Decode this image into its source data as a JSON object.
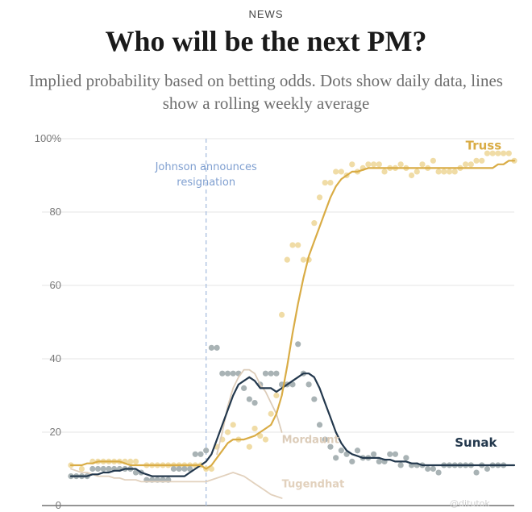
{
  "header": {
    "kicker": "NEWS",
    "title": "Who will be the next PM?",
    "subtitle": "Implied probability based on betting odds. Dots show daily data, lines show a rolling weekly average"
  },
  "watermark": "@ditutok",
  "chart_data": {
    "type": "line",
    "ylim": [
      0,
      100
    ],
    "yticks": [
      "0",
      "20",
      "40",
      "60",
      "80",
      "100%"
    ],
    "grid": true,
    "annotation": {
      "text_lines": [
        "Johnson announces",
        "resignation"
      ],
      "day": 25
    },
    "days": 83,
    "series": [
      {
        "name": "Truss",
        "color": "#d9ac45",
        "dot_color": "#f0dca6",
        "line": [
          11,
          11,
          11,
          11.5,
          11.5,
          12,
          12,
          12,
          12,
          12,
          11.5,
          11,
          11,
          11,
          11,
          11,
          11,
          11,
          11,
          11,
          11,
          11,
          11,
          11,
          11,
          10,
          11,
          13,
          15,
          17,
          18,
          18,
          18,
          18.5,
          19,
          20,
          21,
          22,
          25,
          30,
          38,
          47,
          55,
          62,
          68,
          72,
          76,
          80,
          84,
          87,
          89,
          90,
          91,
          91,
          91.5,
          92,
          92,
          92,
          92,
          92,
          92,
          92,
          92,
          92,
          92,
          92,
          92,
          92,
          92,
          92,
          92,
          92,
          92,
          92,
          92,
          92,
          92,
          92,
          92,
          93,
          93,
          94,
          94
        ],
        "dots": [
          [
            0,
            11
          ],
          [
            2,
            10
          ],
          [
            4,
            12
          ],
          [
            5,
            12
          ],
          [
            6,
            12
          ],
          [
            7,
            12
          ],
          [
            8,
            12
          ],
          [
            9,
            12
          ],
          [
            10,
            12
          ],
          [
            11,
            12
          ],
          [
            12,
            12
          ],
          [
            14,
            11
          ],
          [
            15,
            11
          ],
          [
            16,
            11
          ],
          [
            17,
            11
          ],
          [
            18,
            11
          ],
          [
            19,
            11
          ],
          [
            20,
            11
          ],
          [
            21,
            11
          ],
          [
            22,
            11
          ],
          [
            23,
            11
          ],
          [
            24,
            11
          ],
          [
            25,
            10
          ],
          [
            26,
            10
          ],
          [
            27,
            16
          ],
          [
            28,
            18
          ],
          [
            29,
            20
          ],
          [
            30,
            22
          ],
          [
            31,
            18
          ],
          [
            33,
            16
          ],
          [
            34,
            21
          ],
          [
            35,
            19
          ],
          [
            36,
            18
          ],
          [
            37,
            25
          ],
          [
            38,
            30
          ],
          [
            39,
            52
          ],
          [
            40,
            67
          ],
          [
            41,
            71
          ],
          [
            42,
            71
          ],
          [
            43,
            67
          ],
          [
            44,
            67
          ],
          [
            45,
            77
          ],
          [
            46,
            84
          ],
          [
            47,
            88
          ],
          [
            48,
            88
          ],
          [
            49,
            91
          ],
          [
            50,
            91
          ],
          [
            51,
            90
          ],
          [
            52,
            93
          ],
          [
            53,
            91
          ],
          [
            54,
            92
          ],
          [
            55,
            93
          ],
          [
            56,
            93
          ],
          [
            57,
            93
          ],
          [
            58,
            91
          ],
          [
            59,
            92
          ],
          [
            60,
            92
          ],
          [
            61,
            93
          ],
          [
            62,
            92
          ],
          [
            63,
            90
          ],
          [
            64,
            91
          ],
          [
            65,
            93
          ],
          [
            66,
            92
          ],
          [
            67,
            94
          ],
          [
            68,
            91
          ],
          [
            69,
            91
          ],
          [
            70,
            91
          ],
          [
            71,
            91
          ],
          [
            72,
            92
          ],
          [
            73,
            93
          ],
          [
            74,
            93
          ],
          [
            75,
            94
          ],
          [
            76,
            94
          ],
          [
            77,
            96
          ],
          [
            78,
            96
          ],
          [
            79,
            96
          ],
          [
            80,
            96
          ],
          [
            81,
            96
          ],
          [
            82,
            94
          ]
        ]
      },
      {
        "name": "Sunak",
        "color": "#23384d",
        "dot_color": "#a9b3b5",
        "line": [
          8,
          8,
          8,
          8,
          8.5,
          8.5,
          9,
          9,
          9.5,
          9.5,
          10,
          10,
          10,
          9,
          8.5,
          8,
          8,
          8,
          8,
          8,
          8,
          8,
          9,
          10,
          11,
          12,
          14,
          18,
          22,
          26,
          30,
          33,
          34,
          35,
          34,
          32,
          32,
          32,
          31,
          32,
          33,
          34,
          35,
          36,
          36,
          35,
          32,
          28,
          24,
          20,
          17,
          15,
          14,
          13.5,
          13,
          13,
          13,
          13,
          12.5,
          12.5,
          12,
          12,
          12,
          11.5,
          11.5,
          11,
          11,
          11,
          11,
          11,
          11,
          11,
          11,
          11,
          11,
          11,
          11,
          11,
          11,
          11,
          11,
          11,
          11
        ],
        "dots": [
          [
            0,
            8
          ],
          [
            1,
            8
          ],
          [
            2,
            8
          ],
          [
            3,
            8
          ],
          [
            4,
            10
          ],
          [
            5,
            10
          ],
          [
            6,
            10
          ],
          [
            7,
            10
          ],
          [
            8,
            10
          ],
          [
            9,
            10
          ],
          [
            10,
            10
          ],
          [
            11,
            10
          ],
          [
            12,
            9
          ],
          [
            13,
            9
          ],
          [
            14,
            7
          ],
          [
            15,
            7
          ],
          [
            16,
            7
          ],
          [
            17,
            7
          ],
          [
            18,
            7
          ],
          [
            19,
            10
          ],
          [
            20,
            10
          ],
          [
            21,
            10
          ],
          [
            22,
            10
          ],
          [
            23,
            14
          ],
          [
            24,
            14
          ],
          [
            25,
            15
          ],
          [
            26,
            43
          ],
          [
            27,
            43
          ],
          [
            28,
            36
          ],
          [
            29,
            36
          ],
          [
            30,
            36
          ],
          [
            31,
            36
          ],
          [
            32,
            32
          ],
          [
            33,
            29
          ],
          [
            34,
            28
          ],
          [
            35,
            33
          ],
          [
            36,
            36
          ],
          [
            37,
            36
          ],
          [
            38,
            36
          ],
          [
            39,
            33
          ],
          [
            40,
            33
          ],
          [
            41,
            33
          ],
          [
            42,
            44
          ],
          [
            43,
            36
          ],
          [
            44,
            33
          ],
          [
            45,
            29
          ],
          [
            46,
            22
          ],
          [
            47,
            18
          ],
          [
            48,
            16
          ],
          [
            49,
            13
          ],
          [
            50,
            15
          ],
          [
            51,
            14
          ],
          [
            52,
            12
          ],
          [
            53,
            15
          ],
          [
            54,
            13
          ],
          [
            55,
            13
          ],
          [
            56,
            14
          ],
          [
            57,
            12
          ],
          [
            58,
            12
          ],
          [
            59,
            14
          ],
          [
            60,
            14
          ],
          [
            61,
            11
          ],
          [
            62,
            13
          ],
          [
            63,
            11
          ],
          [
            64,
            11
          ],
          [
            65,
            11
          ],
          [
            66,
            10
          ],
          [
            67,
            10
          ],
          [
            68,
            9
          ],
          [
            69,
            11
          ],
          [
            70,
            11
          ],
          [
            71,
            11
          ],
          [
            72,
            11
          ],
          [
            73,
            11
          ],
          [
            74,
            11
          ],
          [
            75,
            9
          ],
          [
            76,
            11
          ],
          [
            77,
            10
          ],
          [
            78,
            11
          ],
          [
            79,
            11
          ],
          [
            80,
            11
          ]
        ]
      },
      {
        "name": "Mordaunt",
        "color": "#dcccb9",
        "dot_color": "#e2d6c6",
        "line": [
          null,
          null,
          null,
          null,
          null,
          null,
          null,
          null,
          null,
          null,
          null,
          null,
          null,
          null,
          null,
          null,
          null,
          null,
          null,
          null,
          null,
          null,
          null,
          null,
          null,
          null,
          null,
          14,
          20,
          27,
          32,
          35,
          37,
          37,
          36,
          33,
          31,
          28,
          25,
          20
        ],
        "dots": []
      },
      {
        "name": "Tugendhat",
        "color": "#e2d1bd",
        "dot_color": "#e2d1bd",
        "line": [
          10,
          9.5,
          9,
          9,
          8.5,
          8,
          8,
          8,
          7.5,
          7.5,
          7,
          7,
          7,
          6.5,
          6.5,
          6.5,
          6.5,
          6.5,
          6.5,
          6.5,
          6.5,
          6.5,
          6.5,
          6.5,
          6.5,
          6.5,
          7,
          7.5,
          8,
          8.5,
          9,
          8.5,
          8,
          7,
          6,
          5,
          4,
          3,
          2.5,
          2
        ],
        "dots": []
      }
    ],
    "labels": [
      {
        "series": "Truss",
        "text": "Truss",
        "day": 73,
        "y": 97
      },
      {
        "series": "Sunak",
        "text": "Sunak",
        "day": 71,
        "y": 16
      },
      {
        "series": "Mordaunt",
        "text": "Mordaunt",
        "day": 39,
        "y": 17
      },
      {
        "series": "Tugendhat",
        "text": "Tugendhat",
        "day": 39,
        "y": 5
      }
    ]
  }
}
